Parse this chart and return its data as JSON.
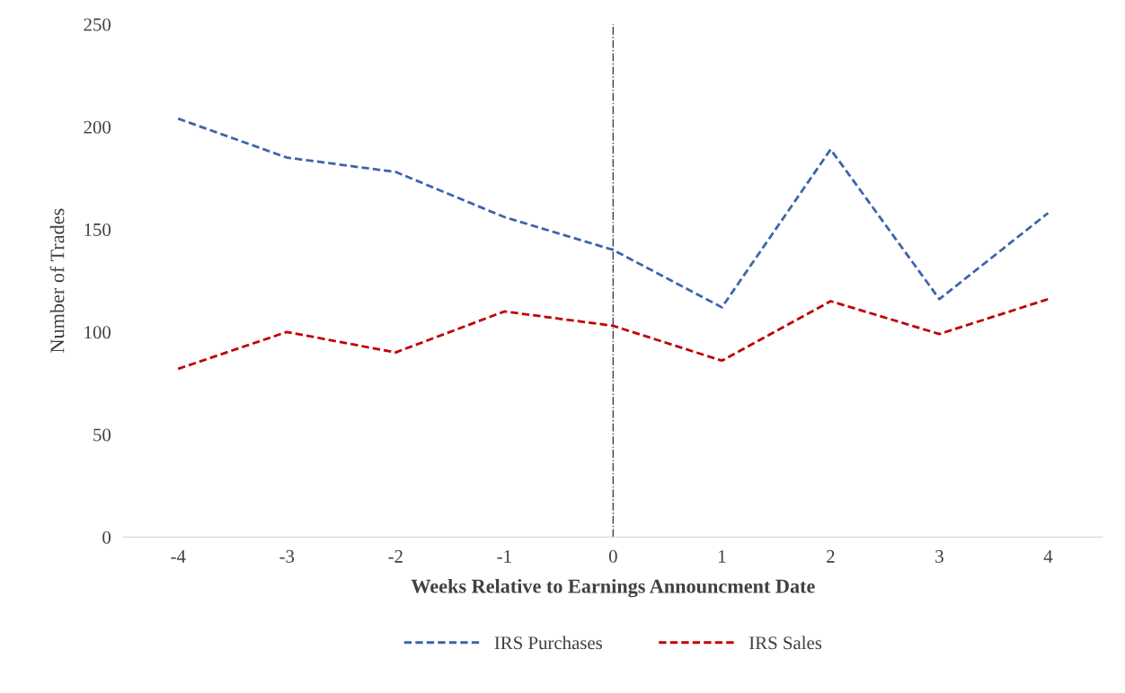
{
  "chart_data": {
    "type": "line",
    "xlabel": "Weeks Relative to Earnings Announcment Date",
    "ylabel": "Number of Trades",
    "x": [
      -4,
      -3,
      -2,
      -1,
      0,
      1,
      2,
      3,
      4
    ],
    "xlim": [
      -4.5,
      4.5
    ],
    "xticks": [
      {
        "value": -4,
        "label": "-4"
      },
      {
        "value": -3,
        "label": "-3"
      },
      {
        "value": -2,
        "label": "-2"
      },
      {
        "value": -1,
        "label": "-1"
      },
      0,
      1,
      2,
      3,
      4
    ],
    "ylim": [
      0,
      250
    ],
    "yticks": [
      0,
      50,
      100,
      150,
      200,
      250
    ],
    "series": [
      {
        "name": "IRS Purchases",
        "color": "#3c64ac",
        "values": [
          204,
          185,
          178,
          156,
          140,
          112,
          189,
          116,
          158
        ]
      },
      {
        "name": "IRS Sales",
        "color": "#c00000",
        "values": [
          82,
          100,
          90,
          110,
          103,
          86,
          115,
          99,
          116
        ]
      }
    ],
    "ref_lines": [
      {
        "axis": "x",
        "value": 0,
        "color": "#404040",
        "line_style": "dashdot"
      }
    ],
    "line_style": "dashed",
    "marker": "none",
    "grid": false,
    "legend": "bottom"
  }
}
